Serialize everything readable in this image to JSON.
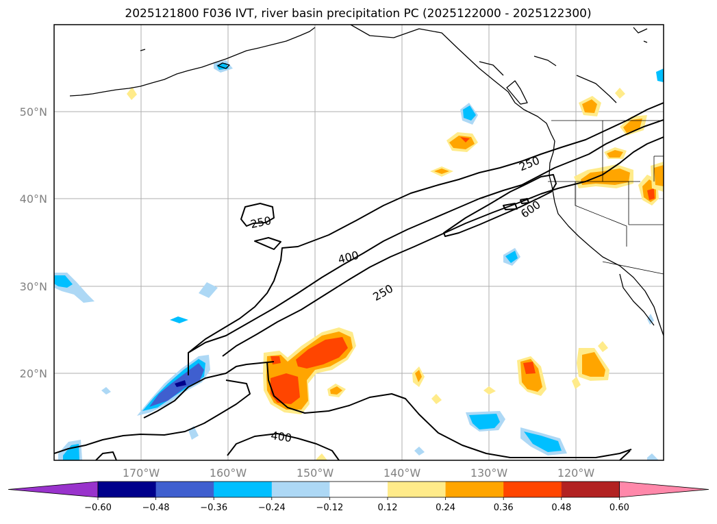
{
  "title": "2025121800 F036 IVT, river basin precipitation PC (2025122000 - 2025122300)",
  "map": {
    "lon_ticks": [
      "170°W",
      "160°W",
      "150°W",
      "140°W",
      "130°W",
      "120°W"
    ],
    "lat_ticks": [
      "50°N",
      "40°N",
      "30°N",
      "20°N"
    ],
    "grid": true
  },
  "ivt_contours": {
    "levels": [
      250,
      400,
      600
    ],
    "labels": [
      "250",
      "250",
      "400",
      "400",
      "250",
      "600"
    ]
  },
  "colorbar": {
    "orientation": "horizontal",
    "extend": "both",
    "tick_labels": [
      "−0.60",
      "−0.48",
      "−0.36",
      "−0.24",
      "−0.12",
      "0.12",
      "0.24",
      "0.36",
      "0.48",
      "0.60"
    ],
    "colors": [
      "#9933cc",
      "#00008b",
      "#3f5fcf",
      "#00bfff",
      "#add8f5",
      "#ffffff",
      "#ffeb8a",
      "#ffa500",
      "#ff4500",
      "#b22222",
      "#ff88aa"
    ]
  },
  "chart_data": {
    "type": "heatmap",
    "title": "2025121800 F036 IVT, river basin precipitation PC (2025122000 - 2025122300)",
    "x_tick_labels": [
      "170°W",
      "160°W",
      "150°W",
      "140°W",
      "130°W",
      "120°W"
    ],
    "y_tick_labels": [
      "50°N",
      "40°N",
      "30°N",
      "20°N"
    ],
    "x_range_deg_lon": [
      -180,
      -110
    ],
    "y_range_deg_lat": [
      10,
      60
    ],
    "contour_levels": [
      250,
      400,
      600
    ],
    "colorbar_bounds": [
      -0.6,
      -0.48,
      -0.36,
      -0.24,
      -0.12,
      0.12,
      0.24,
      0.36,
      0.48,
      0.6
    ],
    "grid": true
  }
}
